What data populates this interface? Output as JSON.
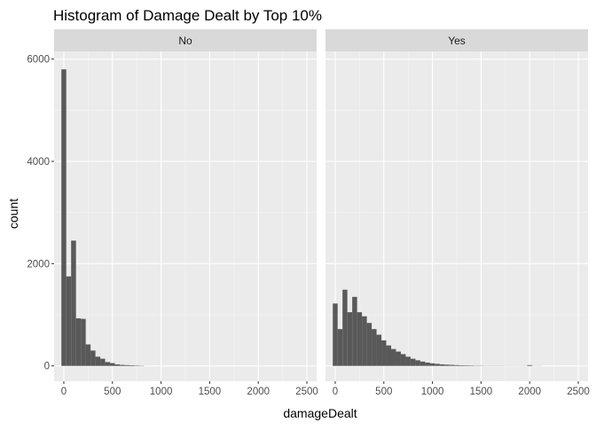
{
  "chart_data": {
    "type": "bar",
    "title": "Histogram of Damage Dealt by Top 10%",
    "xlabel": "damageDealt",
    "ylabel": "count",
    "xlim": [
      -100,
      2600
    ],
    "ylim": [
      -300,
      6150
    ],
    "x_ticks": [
      0,
      500,
      1000,
      1500,
      2000,
      2500
    ],
    "y_ticks": [
      0,
      2000,
      4000,
      6000
    ],
    "bin_width": 50,
    "grid": true,
    "bar_color": "#595959",
    "panel_bg": "#ebebeb",
    "strip_bg": "#d9d9d9",
    "panels": [
      {
        "strip_label": "No",
        "bins_start": -25,
        "counts": [
          5800,
          1750,
          2450,
          930,
          920,
          420,
          300,
          180,
          140,
          75,
          55,
          30,
          20,
          15,
          12,
          8,
          5
        ]
      },
      {
        "strip_label": "Yes",
        "bins_start": -25,
        "counts": [
          1220,
          720,
          1490,
          1050,
          1350,
          1050,
          970,
          840,
          720,
          610,
          500,
          400,
          330,
          280,
          230,
          180,
          140,
          110,
          85,
          65,
          50,
          40,
          30,
          25,
          20,
          15,
          12,
          10,
          8,
          5,
          5,
          3,
          3,
          3,
          3,
          2,
          2,
          2,
          2,
          2,
          15,
          2,
          2
        ]
      }
    ]
  }
}
